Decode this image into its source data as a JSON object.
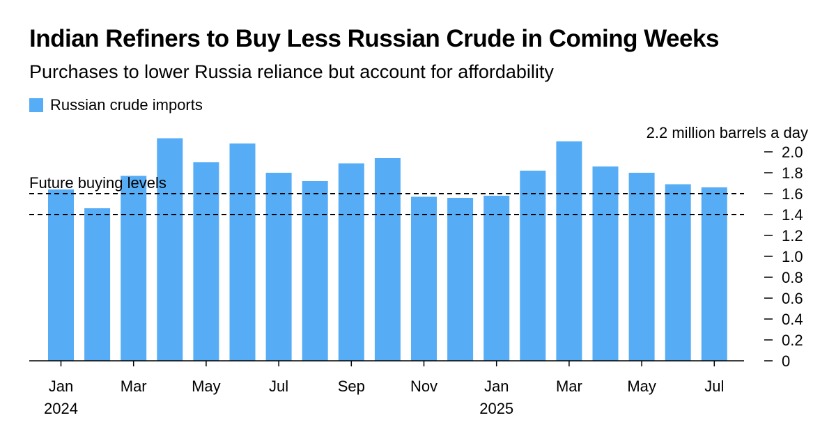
{
  "header": {
    "title": "Indian Refiners to Buy Less Russian Crude in Coming Weeks",
    "subtitle": "Purchases to lower Russia reliance but account for affordability"
  },
  "legend": {
    "label": "Russian crude imports",
    "color": "#56adf6"
  },
  "chart_data": {
    "type": "bar",
    "title": "Indian Refiners to Buy Less Russian Crude in Coming Weeks",
    "subtitle": "Purchases to lower Russia reliance but account for affordability",
    "unit_label": "2.2 million barrels a day",
    "categories": [
      "Jan 2024",
      "Feb 2024",
      "Mar 2024",
      "Apr 2024",
      "May 2024",
      "Jun 2024",
      "Jul 2024",
      "Aug 2024",
      "Sep 2024",
      "Oct 2024",
      "Nov 2024",
      "Dec 2024",
      "Jan 2025",
      "Feb 2025",
      "Mar 2025",
      "Apr 2025",
      "May 2025",
      "Jun 2025",
      "Jul 2025"
    ],
    "series": [
      {
        "name": "Russian crude imports",
        "values": [
          1.64,
          1.46,
          1.77,
          2.13,
          1.9,
          2.08,
          1.8,
          1.72,
          1.89,
          1.94,
          1.57,
          1.56,
          1.58,
          1.82,
          2.1,
          1.86,
          1.8,
          1.69,
          1.66
        ],
        "color": "#56adf6"
      }
    ],
    "x_tick_labels": [
      {
        "index": 0,
        "label": "Jan",
        "year": "2024"
      },
      {
        "index": 2,
        "label": "Mar"
      },
      {
        "index": 4,
        "label": "May"
      },
      {
        "index": 6,
        "label": "Jul"
      },
      {
        "index": 8,
        "label": "Sep"
      },
      {
        "index": 10,
        "label": "Nov"
      },
      {
        "index": 12,
        "label": "Jan",
        "year": "2025"
      },
      {
        "index": 14,
        "label": "Mar"
      },
      {
        "index": 16,
        "label": "May"
      },
      {
        "index": 18,
        "label": "Jul"
      }
    ],
    "y_ticks": [
      "0",
      "0.2",
      "0.4",
      "0.6",
      "0.8",
      "1.0",
      "1.2",
      "1.4",
      "1.6",
      "1.8",
      "2.0"
    ],
    "ylim": [
      0,
      2.2
    ],
    "y_axis_position": "right",
    "grid": false,
    "reference_lines": [
      {
        "value": 1.6,
        "label": "Future buying levels",
        "style": "dashed"
      },
      {
        "value": 1.4,
        "label": "",
        "style": "dashed"
      }
    ]
  }
}
